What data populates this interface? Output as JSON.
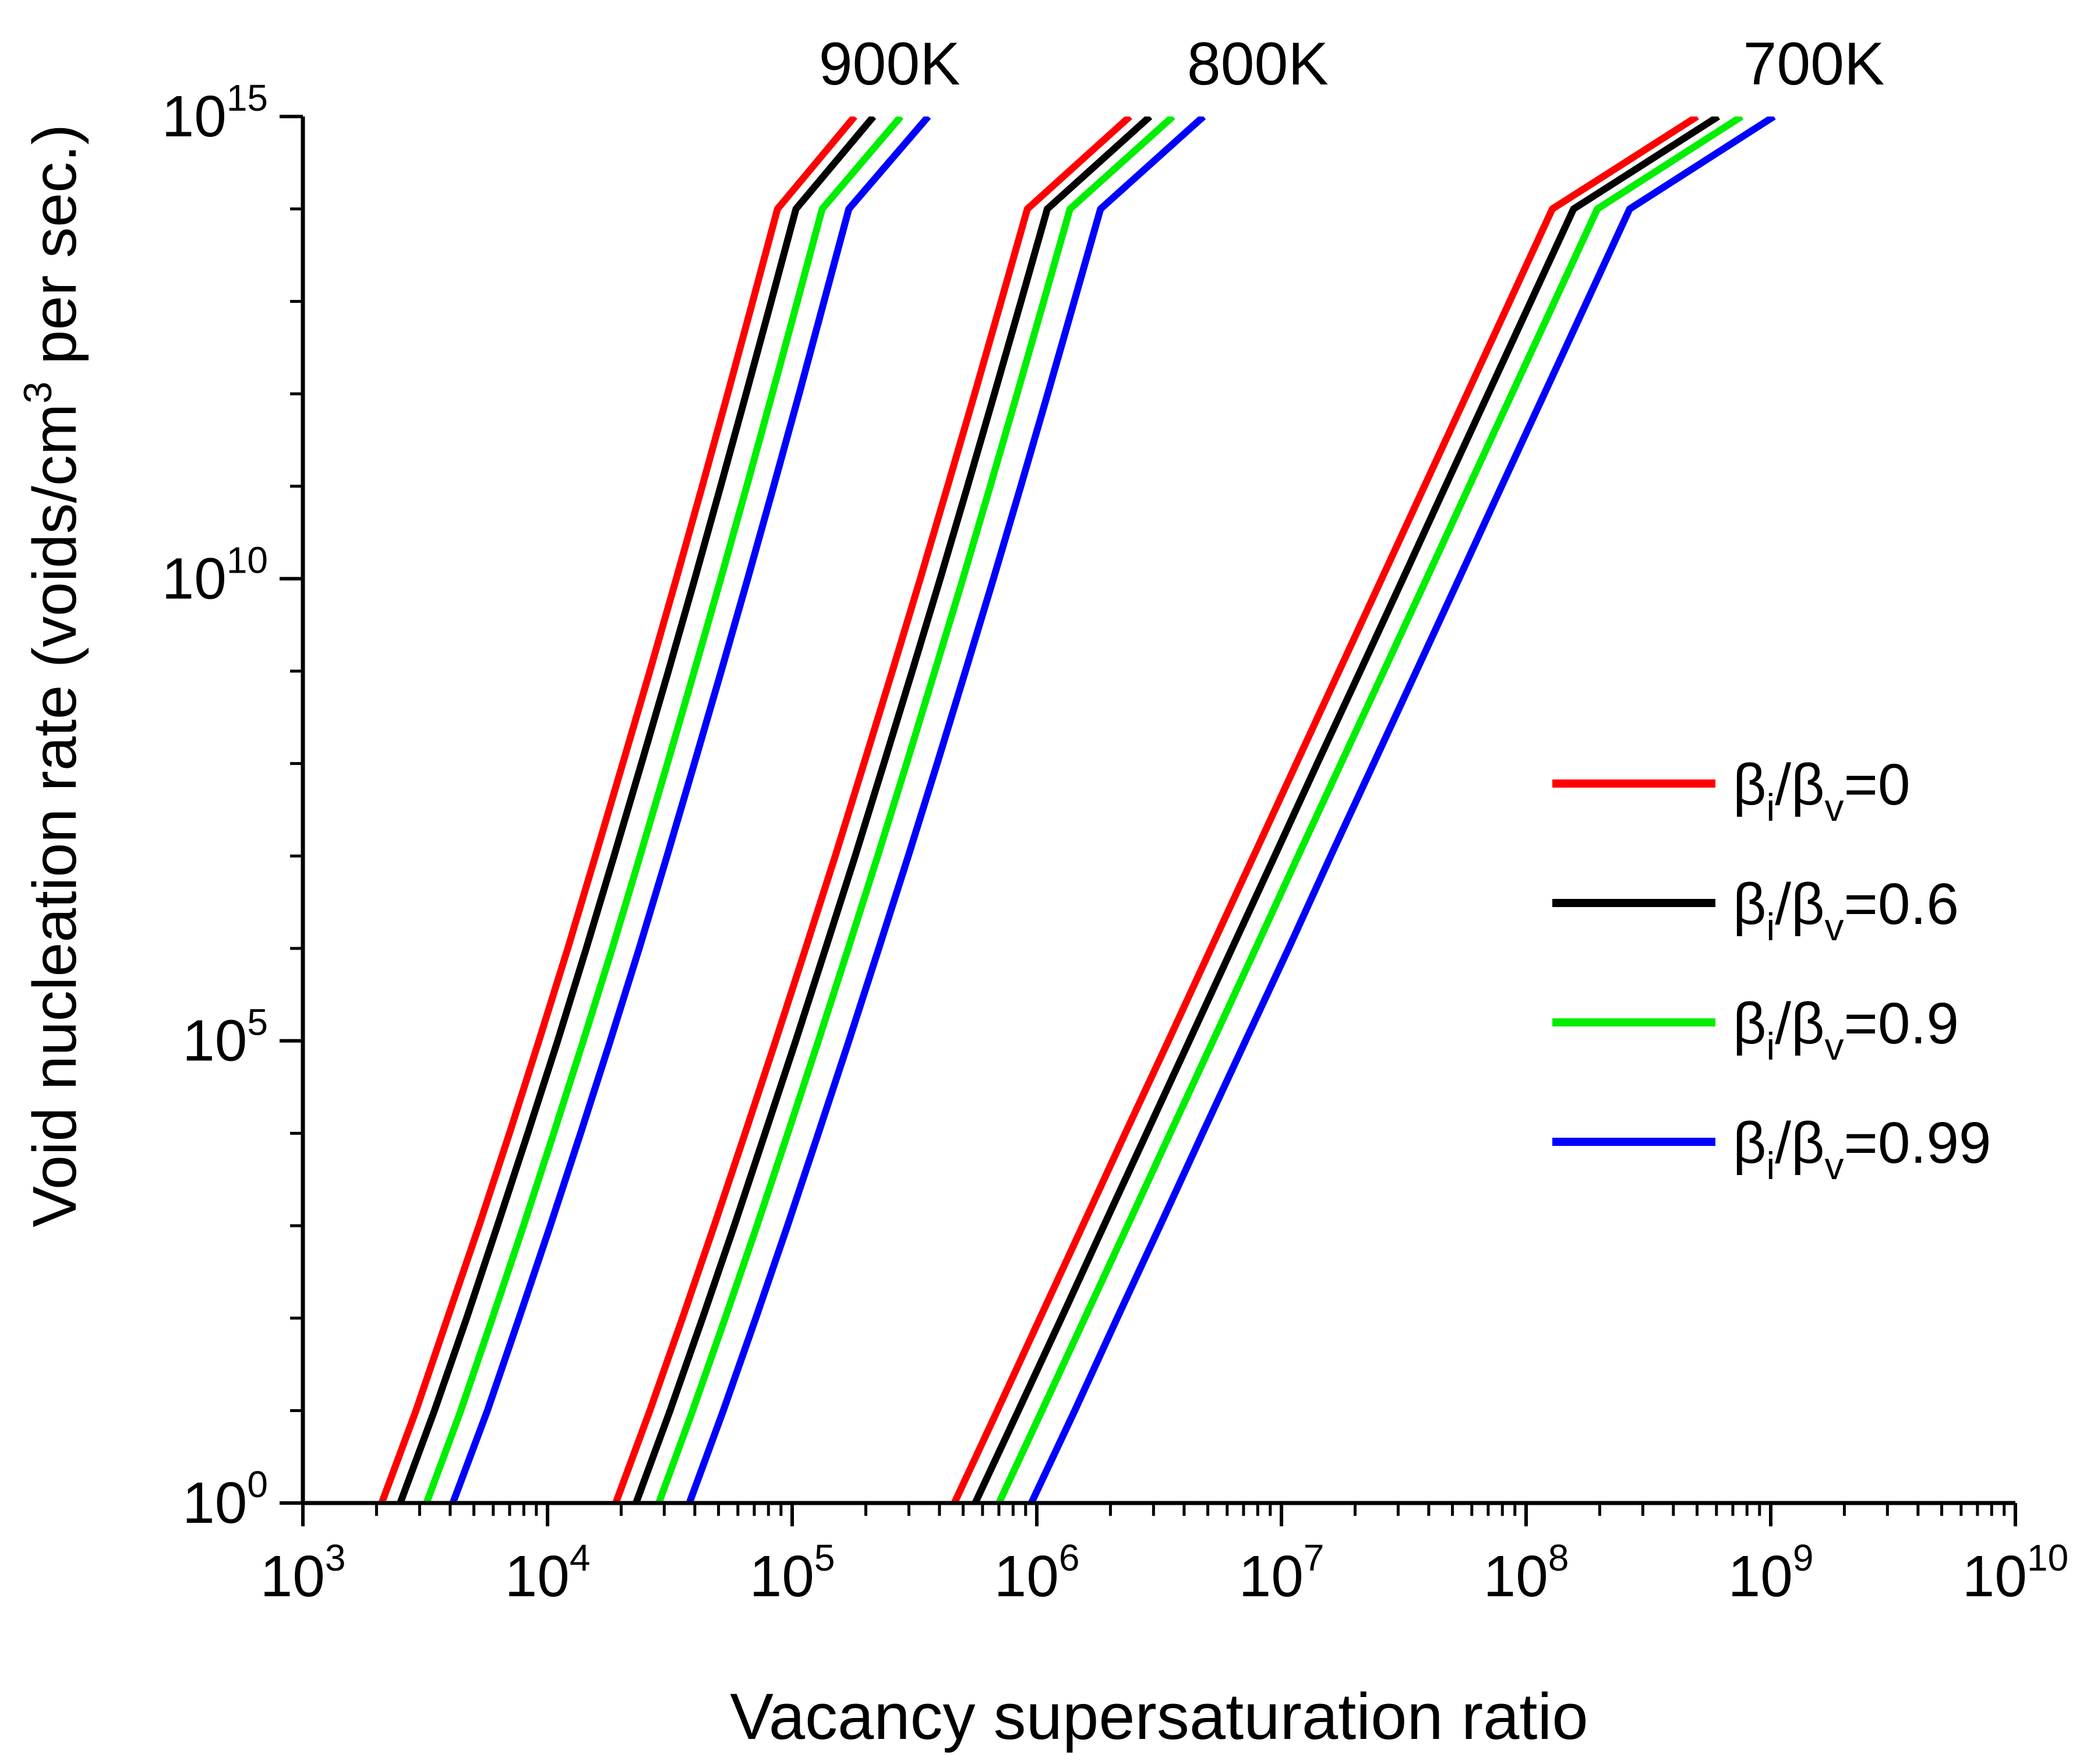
{
  "chart_data": {
    "type": "line",
    "title": "",
    "xlabel": "Vacancy supersaturation ratio",
    "ylabel": "Void nucleation rate (voids/cm³ per sec.)",
    "ylabel_parts": {
      "before": "Void nucleation rate (voids/cm",
      "sup": "3",
      "after": " per sec.)"
    },
    "x_scale": "log",
    "y_scale": "log",
    "xlim": [
      1000,
      10000000000
    ],
    "ylim": [
      1,
      1000000000000000
    ],
    "x_ticks": [
      {
        "base": "10",
        "exp": "3"
      },
      {
        "base": "10",
        "exp": "4"
      },
      {
        "base": "10",
        "exp": "5"
      },
      {
        "base": "10",
        "exp": "6"
      },
      {
        "base": "10",
        "exp": "7"
      },
      {
        "base": "10",
        "exp": "8"
      },
      {
        "base": "10",
        "exp": "9"
      },
      {
        "base": "10",
        "exp": "10"
      }
    ],
    "y_ticks": [
      {
        "base": "10",
        "exp": "0"
      },
      {
        "base": "10",
        "exp": "5"
      },
      {
        "base": "10",
        "exp": "10"
      },
      {
        "base": "10",
        "exp": "15"
      }
    ],
    "grid": false,
    "legend_position": "right",
    "legend": [
      {
        "prefix": "β",
        "sub1": "i",
        "mid": "/β",
        "sub2": "v",
        "suffix": "=0",
        "color": "#ff0000"
      },
      {
        "prefix": "β",
        "sub1": "i",
        "mid": "/β",
        "sub2": "v",
        "suffix": "=0.6",
        "color": "#000000"
      },
      {
        "prefix": "β",
        "sub1": "i",
        "mid": "/β",
        "sub2": "v",
        "suffix": "=0.9",
        "color": "#00ee00"
      },
      {
        "prefix": "β",
        "sub1": "i",
        "mid": "/β",
        "sub2": "v",
        "suffix": "=0.99",
        "color": "#0000ff"
      }
    ],
    "annotations": [
      {
        "text": "900K",
        "x": 250000,
        "y": 1000000000000000
      },
      {
        "text": "800K",
        "x": 8000000,
        "y": 1000000000000000
      },
      {
        "text": "700K",
        "x": 1500000000,
        "y": 1000000000000000
      }
    ],
    "y_samples": [
      1,
      10,
      100,
      1000,
      10000,
      100000,
      1000000,
      10000000,
      100000000,
      1000000000,
      10000000000,
      100000000000,
      1000000000000,
      10000000000000,
      100000000000000,
      1000000000000000
    ],
    "series": [
      {
        "group": "900K",
        "color": "#ff0000",
        "x": [
          2100,
          2900,
          3900,
          5250,
          6990,
          9220,
          12100,
          15700,
          20300,
          26200,
          33600,
          42900,
          54500,
          69000,
          87100,
          180000
        ]
      },
      {
        "group": "900K",
        "color": "#000000",
        "x": [
          2500,
          3450,
          4670,
          6240,
          8310,
          11000,
          14400,
          18700,
          24200,
          31200,
          40000,
          51000,
          64800,
          82100,
          103600,
          215000
        ]
      },
      {
        "group": "900K",
        "color": "#00ee00",
        "x": [
          3200,
          4420,
          5950,
          7980,
          10600,
          14000,
          18400,
          23900,
          30900,
          39800,
          51100,
          65200,
          82900,
          105000,
          132600,
          278000
        ]
      },
      {
        "group": "900K",
        "color": "#0000ff",
        "x": [
          4100,
          5680,
          7650,
          10260,
          13650,
          18050,
          23700,
          30800,
          39800,
          51300,
          65800,
          84000,
          106800,
          135000,
          170500,
          360000
        ]
      },
      {
        "group": "800K",
        "color": "#ff0000",
        "x": [
          19000,
          26200,
          35600,
          48000,
          64200,
          85600,
          113500,
          150000,
          196500,
          256700,
          334000,
          432000,
          557000,
          715000,
          915000,
          2400000
        ]
      },
      {
        "group": "800K",
        "color": "#000000",
        "x": [
          23000,
          31700,
          43000,
          58000,
          77500,
          103400,
          137000,
          181000,
          237000,
          309500,
          403000,
          521000,
          671000,
          862000,
          1104000,
          2900000
        ]
      },
      {
        "group": "800K",
        "color": "#00ee00",
        "x": [
          28500,
          39200,
          53200,
          71800,
          96000,
          128000,
          169500,
          223800,
          293500,
          383000,
          499000,
          645000,
          831000,
          1067000,
          1367000,
          3600000
        ]
      },
      {
        "group": "800K",
        "color": "#0000ff",
        "x": [
          38000,
          52300,
          71000,
          95700,
          128000,
          170600,
          226000,
          298400,
          391300,
          510800,
          665000,
          860000,
          1108000,
          1422000,
          1822000,
          4800000
        ]
      },
      {
        "group": "700K",
        "color": "#ff0000",
        "x": [
          460000,
          690000,
          1030000,
          1540000,
          2300000,
          3450000,
          5150000,
          7700000,
          11500000,
          17200000,
          25700000,
          38400000,
          57400000,
          85700000,
          128000000,
          500000000
        ]
      },
      {
        "group": "700K",
        "color": "#000000",
        "x": [
          560000,
          841000,
          1260000,
          1880000,
          2810000,
          4200000,
          6280000,
          9390000,
          14000000,
          21000000,
          31400000,
          46800000,
          70000000,
          104600000,
          156300000,
          610000000
        ]
      },
      {
        "group": "700K",
        "color": "#00ee00",
        "x": [
          700000,
          1050000,
          1570000,
          2350000,
          3510000,
          5250000,
          7850000,
          11700000,
          17500000,
          26200000,
          39200000,
          58500000,
          87500000,
          130800000,
          195500000,
          760000000
        ]
      },
      {
        "group": "700K",
        "color": "#0000ff",
        "x": [
          950000,
          1430000,
          2130000,
          3190000,
          4760000,
          7130000,
          10700000,
          15900000,
          23800000,
          35600000,
          53200000,
          79400000,
          118700000,
          177400000,
          265000000,
          1030000000
        ]
      }
    ]
  }
}
